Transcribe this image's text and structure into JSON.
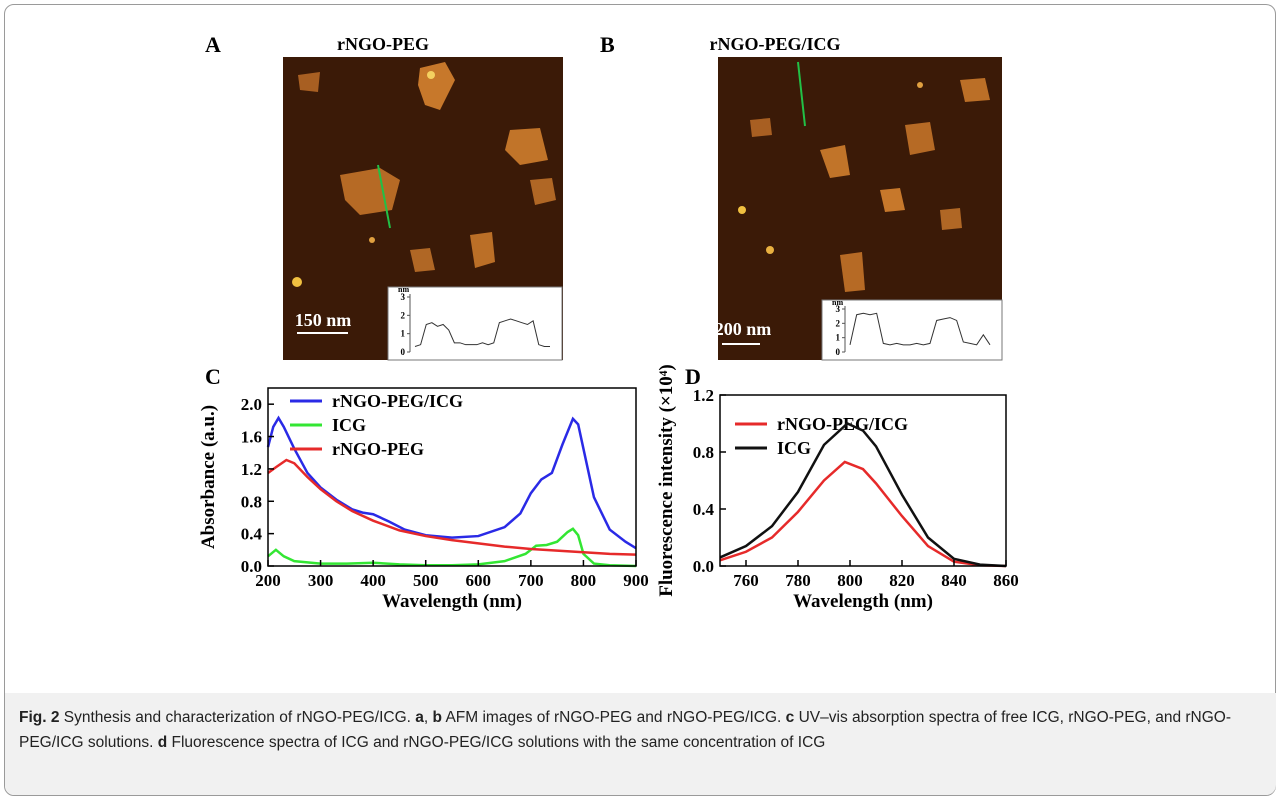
{
  "panels": [
    {
      "label": "A",
      "title": "rNGO-PEG",
      "scale_bar": "150 nm",
      "inset": {
        "unit": "nm",
        "ylim": [
          0,
          3
        ],
        "yticks": [
          0,
          1,
          2,
          3
        ],
        "profile": [
          0.3,
          0.4,
          1.5,
          1.6,
          1.4,
          1.5,
          1.2,
          0.5,
          0.5,
          0.4,
          0.4,
          0.4,
          0.5,
          0.4,
          0.5,
          1.6,
          1.7,
          1.8,
          1.7,
          1.6,
          1.5,
          1.7,
          0.4,
          0.3,
          0.3
        ]
      }
    },
    {
      "label": "B",
      "title": "rNGO-PEG/ICG",
      "scale_bar": "200 nm",
      "inset": {
        "unit": "nm",
        "ylim": [
          0,
          3
        ],
        "yticks": [
          0,
          1,
          2,
          3
        ],
        "profile": [
          0.5,
          2.6,
          2.7,
          2.6,
          2.7,
          0.6,
          0.5,
          0.6,
          0.5,
          0.5,
          0.6,
          0.5,
          0.6,
          2.2,
          2.3,
          2.4,
          2.2,
          0.7,
          0.6,
          0.5,
          1.2,
          0.5
        ]
      }
    }
  ],
  "chart_data": [
    {
      "type": "line",
      "label": "C",
      "x_label": "Wavelength (nm)",
      "y_label": "Absorbance (a.u.)",
      "xlim": [
        200,
        900
      ],
      "xticks": [
        200,
        300,
        400,
        500,
        600,
        700,
        800,
        900
      ],
      "ylim": [
        0,
        2.2
      ],
      "yticks": [
        {
          "value": 0,
          "label": "0.0"
        },
        0.4,
        0.8,
        1.2,
        1.6,
        {
          "value": 2,
          "label": "2.0"
        }
      ],
      "series": [
        {
          "name": "rNGO-PEG/ICG",
          "color": "#2a2ae6",
          "x": [
            200,
            210,
            220,
            230,
            250,
            275,
            300,
            330,
            360,
            380,
            400,
            430,
            460,
            500,
            550,
            600,
            650,
            680,
            700,
            720,
            740,
            760,
            780,
            790,
            800,
            820,
            850,
            880,
            900
          ],
          "values": [
            1.47,
            1.72,
            1.83,
            1.72,
            1.45,
            1.15,
            0.97,
            0.82,
            0.7,
            0.66,
            0.64,
            0.55,
            0.45,
            0.38,
            0.35,
            0.37,
            0.48,
            0.65,
            0.9,
            1.07,
            1.15,
            1.5,
            1.82,
            1.75,
            1.45,
            0.85,
            0.45,
            0.3,
            0.22
          ]
        },
        {
          "name": "ICG",
          "color": "#33e633",
          "x": [
            200,
            215,
            230,
            250,
            300,
            350,
            400,
            450,
            500,
            550,
            600,
            650,
            690,
            710,
            730,
            750,
            770,
            780,
            790,
            800,
            820,
            850,
            900
          ],
          "values": [
            0.12,
            0.2,
            0.12,
            0.06,
            0.03,
            0.03,
            0.04,
            0.02,
            0.01,
            0.01,
            0.02,
            0.06,
            0.15,
            0.25,
            0.26,
            0.3,
            0.42,
            0.46,
            0.38,
            0.15,
            0.03,
            0.01,
            0
          ]
        },
        {
          "name": "rNGO-PEG",
          "color": "#e62a2a",
          "x": [
            200,
            215,
            235,
            250,
            275,
            300,
            330,
            360,
            400,
            450,
            500,
            550,
            600,
            650,
            700,
            750,
            800,
            850,
            900
          ],
          "values": [
            1.15,
            1.22,
            1.31,
            1.27,
            1.1,
            0.95,
            0.8,
            0.68,
            0.56,
            0.44,
            0.37,
            0.32,
            0.28,
            0.24,
            0.21,
            0.19,
            0.17,
            0.15,
            0.14
          ]
        }
      ]
    },
    {
      "type": "line",
      "label": "D",
      "x_label": "Wavelength (nm)",
      "y_label": "Fluorescence intensity (×10⁴)",
      "xlim": [
        750,
        860
      ],
      "xticks": [
        760,
        780,
        800,
        820,
        840,
        860
      ],
      "ylim": [
        0,
        1.2
      ],
      "yticks": [
        {
          "value": 0,
          "label": "0.0"
        },
        0.4,
        0.8,
        1.2
      ],
      "series": [
        {
          "name": "rNGO-PEG/ICG",
          "color": "#e62a2a",
          "x": [
            750,
            760,
            770,
            780,
            790,
            798,
            805,
            810,
            820,
            830,
            840,
            850,
            860
          ],
          "values": [
            0.04,
            0.1,
            0.2,
            0.38,
            0.6,
            0.73,
            0.68,
            0.58,
            0.35,
            0.14,
            0.03,
            0.005,
            0
          ]
        },
        {
          "name": "ICG",
          "color": "#111111",
          "x": [
            750,
            760,
            770,
            780,
            790,
            799,
            805,
            810,
            820,
            830,
            840,
            850,
            860
          ],
          "values": [
            0.06,
            0.14,
            0.28,
            0.52,
            0.85,
            1.0,
            0.95,
            0.84,
            0.5,
            0.2,
            0.05,
            0.01,
            0
          ]
        }
      ]
    }
  ],
  "caption": {
    "label": "Fig. 2",
    "parts": [
      "Synthesis and characterization of rNGO-PEG/ICG.",
      "a",
      ",",
      "b",
      "AFM images of rNGO-PEG and rNGO-PEG/ICG.",
      "c",
      "UV–vis absorption spectra of free ICG, rNGO-PEG, and rNGO-PEG/ICG solutions.",
      "d",
      "Fluorescence spectra of ICG and rNGO-PEG/ICG solutions with the same concentration of ICG"
    ]
  }
}
